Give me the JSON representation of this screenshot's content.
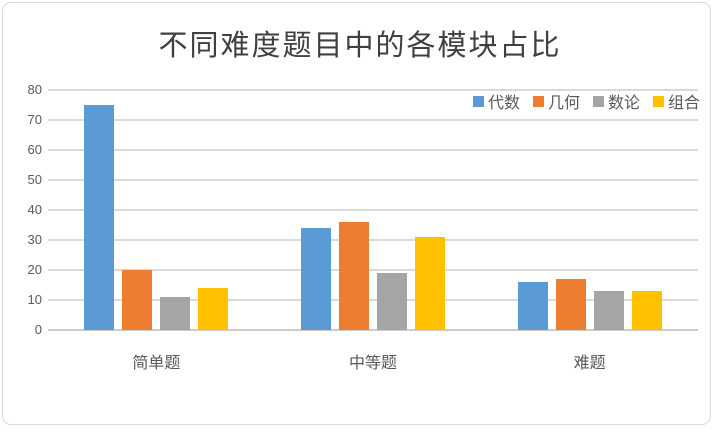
{
  "title": "不同难度题目中的各模块占比",
  "chart_data": {
    "type": "bar",
    "title": "不同难度题目中的各模块占比",
    "categories": [
      "简单题",
      "中等题",
      "难题"
    ],
    "series": [
      {
        "name": "代数",
        "color": "#5B9BD5",
        "values": [
          75,
          34,
          16
        ]
      },
      {
        "name": "几何",
        "color": "#ED7D31",
        "values": [
          20,
          36,
          17
        ]
      },
      {
        "name": "数论",
        "color": "#A5A5A5",
        "values": [
          11,
          19,
          13
        ]
      },
      {
        "name": "组合",
        "color": "#FFC000",
        "values": [
          14,
          31,
          13
        ]
      }
    ],
    "xlabel": "",
    "ylabel": "",
    "ylim": [
      0,
      80
    ],
    "ytick_step": 10,
    "yticks": [
      0,
      10,
      20,
      30,
      40,
      50,
      60,
      70,
      80
    ],
    "grid": true,
    "legend_position": "top-right"
  }
}
